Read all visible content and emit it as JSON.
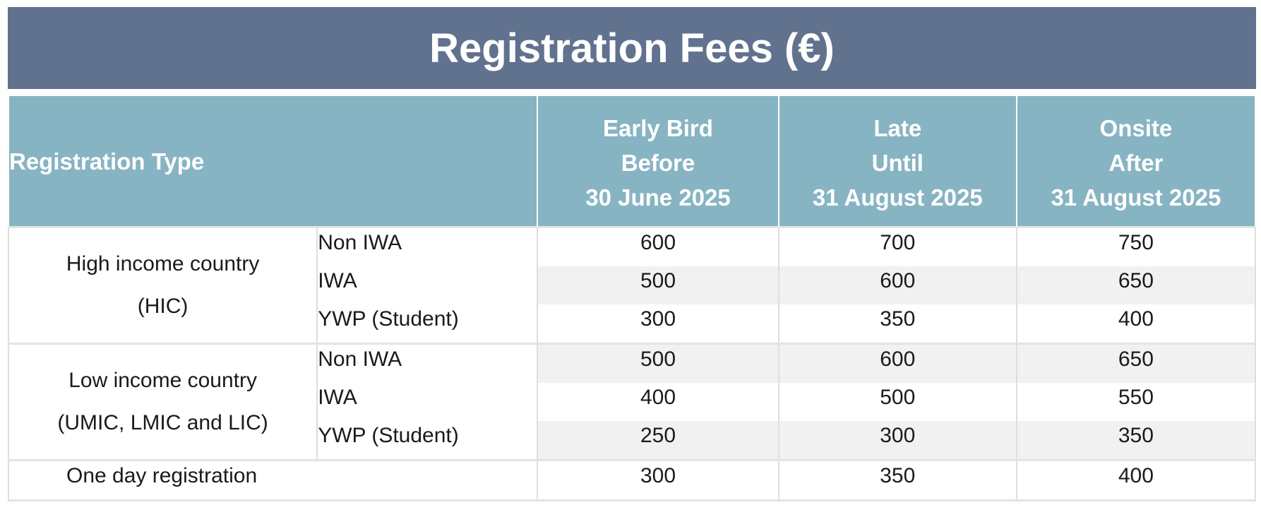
{
  "title": "Registration Fees (€)",
  "header": {
    "registration_type": "Registration Type",
    "early": {
      "line1": "Early Bird",
      "line2": "Before",
      "line3": "30 June 2025"
    },
    "late": {
      "line1": "Late",
      "line2": "Until",
      "line3": "31 August 2025"
    },
    "onsite": {
      "line1": "Onsite",
      "line2": "After",
      "line3": "31 August 2025"
    }
  },
  "groups": {
    "hic": {
      "line1": "High income country",
      "line2": "(HIC)",
      "rows": [
        {
          "label": "Non IWA",
          "early": "600",
          "late": "700",
          "onsite": "750"
        },
        {
          "label": "IWA",
          "early": "500",
          "late": "600",
          "onsite": "650"
        },
        {
          "label": "YWP (Student)",
          "early": "300",
          "late": "350",
          "onsite": "400"
        }
      ]
    },
    "lic": {
      "line1": "Low income country",
      "line2": "(UMIC, LMIC and LIC)",
      "rows": [
        {
          "label": "Non IWA",
          "early": "500",
          "late": "600",
          "onsite": "650"
        },
        {
          "label": "IWA",
          "early": "400",
          "late": "500",
          "onsite": "550"
        },
        {
          "label": "YWP (Student)",
          "early": "250",
          "late": "300",
          "onsite": "350"
        }
      ]
    },
    "one_day": {
      "label": "One day registration",
      "early": "300",
      "late": "350",
      "onsite": "400"
    }
  },
  "colors": {
    "title_bar": "#61728f",
    "header": "#87b4c3",
    "row_shade": "#f1f1f1"
  }
}
